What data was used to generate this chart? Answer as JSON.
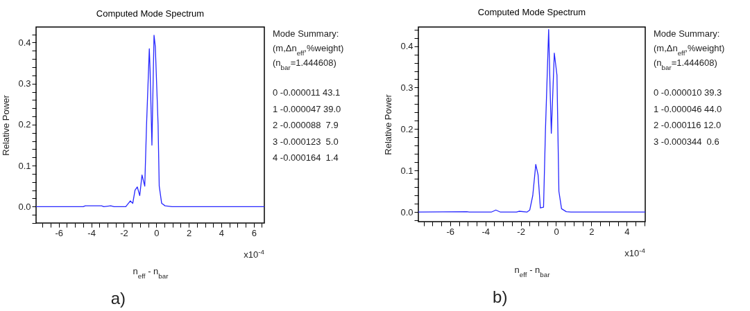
{
  "chart_data": [
    {
      "type": "line",
      "title": "Computed Mode Spectrum",
      "xlabel": "n$_{eff}$ - n$_{bar}$",
      "ylabel": "Relative Power",
      "x": [
        -7.4,
        -4.5,
        -4.37,
        -3.37,
        -3.23,
        -2.8,
        -2.6,
        -1.88,
        -1.6,
        -1.45,
        -1.31,
        -1.17,
        -1.02,
        -0.88,
        -0.71,
        -0.6,
        -0.43,
        -0.38,
        -0.27,
        -0.14,
        -0.06,
        0.11,
        0.18,
        0.33,
        0.54,
        0.97,
        6.65
      ],
      "series": [
        {
          "color": "#2626ff",
          "values": [
            0,
            0,
            0.002,
            0.002,
            0,
            0.002,
            0,
            0,
            0.014,
            0.008,
            0.04,
            0.048,
            0.027,
            0.077,
            0.05,
            0.2,
            0.385,
            0.33,
            0.15,
            0.418,
            0.39,
            0.2,
            0.05,
            0.008,
            0.002,
            0,
            0
          ]
        }
      ],
      "xlim": [
        -7.4,
        6.65
      ],
      "ylim": [
        -0.04,
        0.438
      ],
      "xticks": [
        {
          "value": -7,
          "label": null
        },
        {
          "value": -6.5,
          "label": null
        },
        -6,
        {
          "value": -5.5,
          "label": null
        },
        {
          "value": -5,
          "label": null
        },
        {
          "value": -4.5,
          "label": null
        },
        -4,
        {
          "value": -3.5,
          "label": null
        },
        {
          "value": -3,
          "label": null
        },
        {
          "value": -2.5,
          "label": null
        },
        -2,
        {
          "value": -1.5,
          "label": null
        },
        {
          "value": -1,
          "label": null
        },
        {
          "value": -0.5,
          "label": null
        },
        0,
        {
          "value": 0.5,
          "label": null
        },
        {
          "value": 1,
          "label": null
        },
        {
          "value": 1.5,
          "label": null
        },
        2,
        {
          "value": 2.5,
          "label": null
        },
        {
          "value": 3,
          "label": null
        },
        {
          "value": 3.5,
          "label": null
        },
        4,
        {
          "value": 4.5,
          "label": null
        },
        {
          "value": 5,
          "label": null
        },
        {
          "value": 5.5,
          "label": null
        },
        6,
        {
          "value": 6.5,
          "label": null
        }
      ],
      "yticks": [
        {
          "value": -0.04,
          "label": null
        },
        {
          "value": -0.02,
          "label": null
        },
        {
          "value": 0,
          "label": "0.0"
        },
        {
          "value": 0.02,
          "label": null
        },
        {
          "value": 0.04,
          "label": null
        },
        {
          "value": 0.06,
          "label": null
        },
        {
          "value": 0.08,
          "label": null
        },
        0.1,
        {
          "value": 0.12,
          "label": null
        },
        {
          "value": 0.14,
          "label": null
        },
        {
          "value": 0.16,
          "label": null
        },
        {
          "value": 0.18,
          "label": null
        },
        0.2,
        {
          "value": 0.22,
          "label": null
        },
        {
          "value": 0.24,
          "label": null
        },
        {
          "value": 0.26,
          "label": null
        },
        {
          "value": 0.28,
          "label": null
        },
        0.3,
        {
          "value": 0.32,
          "label": null
        },
        {
          "value": 0.34,
          "label": null
        },
        {
          "value": 0.36,
          "label": null
        },
        {
          "value": 0.38,
          "label": null
        },
        0.4,
        {
          "value": 0.42,
          "label": null
        }
      ],
      "grid": false,
      "annotations": [
        "x10$^{-4}$",
        "a)",
        "Mode Summary:",
        "(m,Δn$_{eff}$,%weight)",
        "(n$_{bar}$=1.444608)",
        "0 -0.000011 43.1",
        "1 -0.000047 39.0",
        "2 -0.000088  7.9",
        "3 -0.000123  5.0",
        "4 -0.000164  1.4"
      ]
    },
    {
      "type": "line",
      "title": "Computed Mode Spectrum",
      "xlabel": "n$_{eff}$ - n$_{bar}$",
      "ylabel": "Relative Power",
      "x": [
        -7.8,
        -5.05,
        -4.92,
        -3.67,
        -3.41,
        -3.15,
        -2.24,
        -2.1,
        -1.65,
        -1.49,
        -1.32,
        -1.15,
        -1.02,
        -0.89,
        -0.71,
        -0.6,
        -0.42,
        -0.34,
        -0.27,
        -0.1,
        0.05,
        0.16,
        0.31,
        0.58,
        0.84,
        5.05
      ],
      "series": [
        {
          "color": "#2626ff",
          "values": [
            0,
            0.001,
            0,
            0,
            0.005,
            0,
            0,
            0.002,
            0,
            0.005,
            0.04,
            0.115,
            0.09,
            0.01,
            0.012,
            0.2,
            0.44,
            0.3,
            0.19,
            0.383,
            0.33,
            0.05,
            0.008,
            0.001,
            0,
            0
          ]
        }
      ],
      "xlim": [
        -7.8,
        5.05
      ],
      "ylim": [
        -0.023,
        0.446
      ],
      "xticks": [
        {
          "value": -7.5,
          "label": null
        },
        {
          "value": -7,
          "label": null
        },
        {
          "value": -6.5,
          "label": null
        },
        -6,
        {
          "value": -5.5,
          "label": null
        },
        {
          "value": -5,
          "label": null
        },
        {
          "value": -4.5,
          "label": null
        },
        -4,
        {
          "value": -3.5,
          "label": null
        },
        {
          "value": -3,
          "label": null
        },
        {
          "value": -2.5,
          "label": null
        },
        -2,
        {
          "value": -1.5,
          "label": null
        },
        {
          "value": -1,
          "label": null
        },
        {
          "value": -0.5,
          "label": null
        },
        0,
        {
          "value": 0.5,
          "label": null
        },
        {
          "value": 1,
          "label": null
        },
        {
          "value": 1.5,
          "label": null
        },
        2,
        {
          "value": 2.5,
          "label": null
        },
        {
          "value": 3,
          "label": null
        },
        {
          "value": 3.5,
          "label": null
        },
        4,
        {
          "value": 4.5,
          "label": null
        },
        {
          "value": 5,
          "label": null
        }
      ],
      "yticks": [
        {
          "value": -0.02,
          "label": null
        },
        {
          "value": 0,
          "label": "0.0"
        },
        {
          "value": 0.02,
          "label": null
        },
        {
          "value": 0.04,
          "label": null
        },
        {
          "value": 0.06,
          "label": null
        },
        {
          "value": 0.08,
          "label": null
        },
        0.1,
        {
          "value": 0.12,
          "label": null
        },
        {
          "value": 0.14,
          "label": null
        },
        {
          "value": 0.16,
          "label": null
        },
        {
          "value": 0.18,
          "label": null
        },
        0.2,
        {
          "value": 0.22,
          "label": null
        },
        {
          "value": 0.24,
          "label": null
        },
        {
          "value": 0.26,
          "label": null
        },
        {
          "value": 0.28,
          "label": null
        },
        0.3,
        {
          "value": 0.32,
          "label": null
        },
        {
          "value": 0.34,
          "label": null
        },
        {
          "value": 0.36,
          "label": null
        },
        {
          "value": 0.38,
          "label": null
        },
        0.4,
        {
          "value": 0.42,
          "label": null
        },
        {
          "value": 0.44,
          "label": null
        }
      ],
      "grid": false,
      "annotations": [
        "x10$^{-4}$",
        "b)",
        "Mode Summary:",
        "(m,Δn$_{eff}$,%weight)",
        "(n$_{bar}$=1.444608)",
        "0 -0.000010 39.3",
        "1 -0.000046 44.0",
        "2 -0.000116 12.0",
        "3 -0.000344  0.6"
      ]
    }
  ]
}
